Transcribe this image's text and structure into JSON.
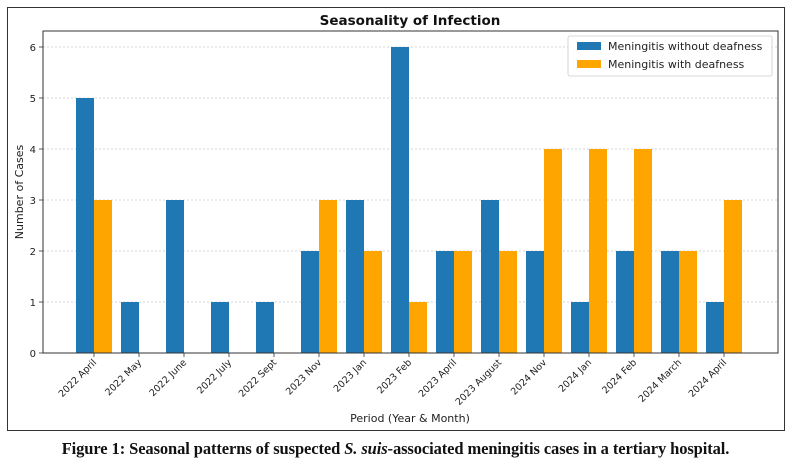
{
  "chart_data": {
    "type": "bar",
    "title": "Seasonality of Infection",
    "xlabel": "Period (Year & Month)",
    "ylabel": "Number of Cases",
    "ylim": [
      0,
      6.3
    ],
    "yticks": [
      0,
      1,
      2,
      3,
      4,
      5,
      6
    ],
    "grid": "y-dashed",
    "legend_position": "top-right",
    "categories": [
      "2022 April",
      "2022 May",
      "2022 June",
      "2022 July",
      "2022 Sept",
      "2023 Nov",
      "2023 Jan",
      "2023 Feb",
      "2023 April",
      "2023 August",
      "2024 Nov",
      "2024 Jan",
      "2024 Feb",
      "2024 March",
      "2024 April"
    ],
    "series": [
      {
        "name": "Meningitis without deafness",
        "color": "#1f77b4",
        "values": [
          5,
          1,
          3,
          1,
          1,
          2,
          3,
          6,
          2,
          3,
          2,
          1,
          2,
          2,
          1
        ]
      },
      {
        "name": "Meningitis with deafness",
        "color": "#ffa500",
        "values": [
          3,
          0,
          0,
          0,
          0,
          3,
          2,
          1,
          2,
          2,
          4,
          4,
          4,
          2,
          3
        ]
      }
    ]
  },
  "caption": {
    "prefix": "Figure 1: Seasonal patterns of suspected ",
    "italic": "S. suis",
    "suffix": "-associated meningitis cases in a tertiary hospital."
  }
}
